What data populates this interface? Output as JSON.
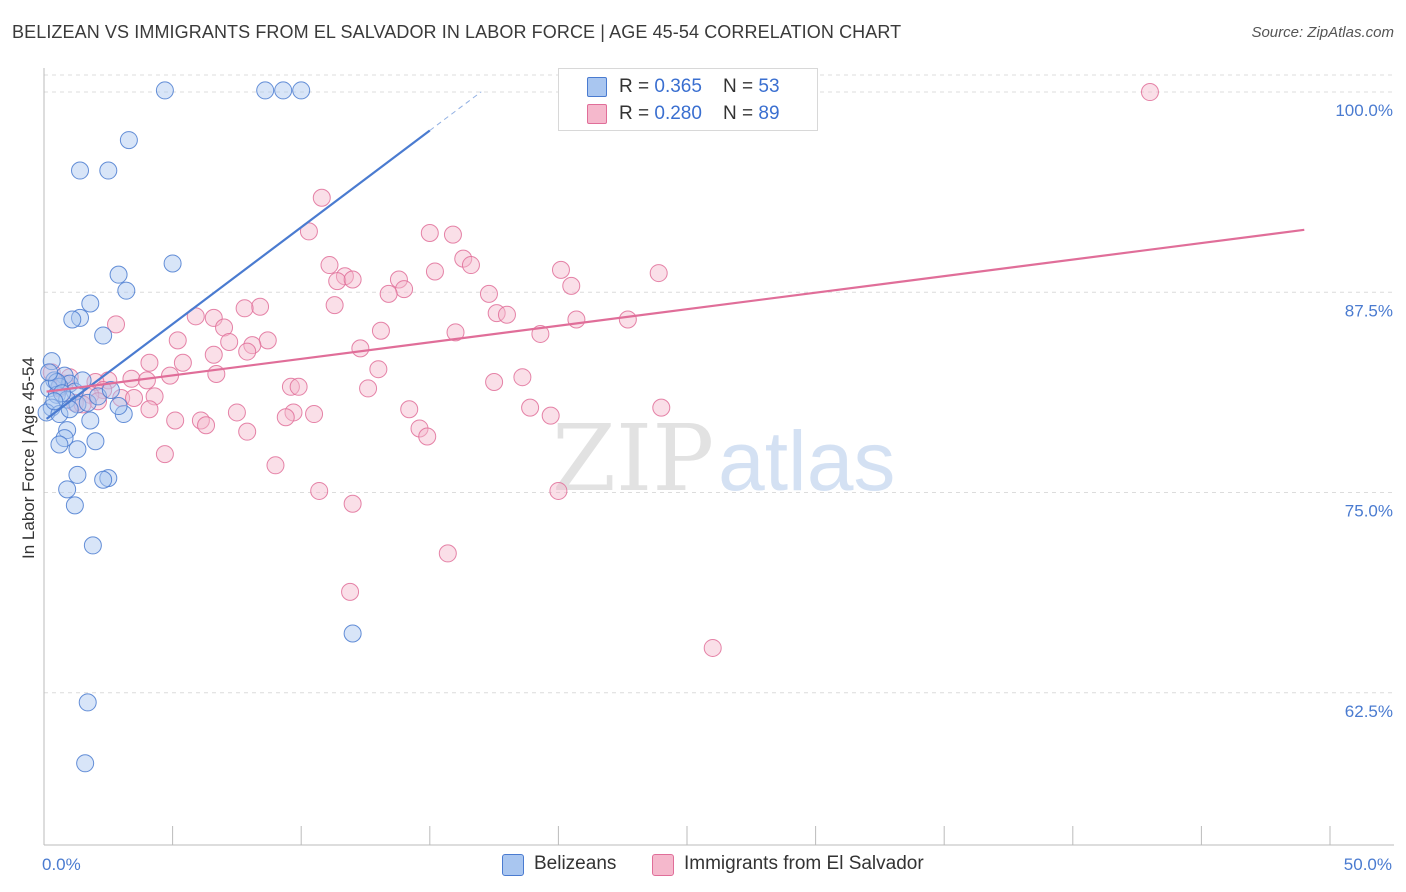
{
  "title": "BELIZEAN VS IMMIGRANTS FROM EL SALVADOR IN LABOR FORCE | AGE 45-54 CORRELATION CHART",
  "source": "Source: ZipAtlas.com",
  "watermark": {
    "zip": "ZIP",
    "atlas": "atlas"
  },
  "legend": {
    "series1": {
      "r_label": "R = ",
      "r_value": "0.365",
      "n_label": "N = ",
      "n_value": "53"
    },
    "series2": {
      "r_label": "R = ",
      "r_value": "0.280",
      "n_label": "N = ",
      "n_value": "89"
    }
  },
  "colors": {
    "blue": "#4a7bd0",
    "blue_fill": "#a9c6f0",
    "pink": "#e06e99",
    "pink_fill": "#f5b8cc",
    "grid": "#dcdcdc"
  },
  "chart_data": {
    "type": "scatter",
    "title": "BELIZEAN VS IMMIGRANTS FROM EL SALVADOR IN LABOR FORCE | AGE 45-54 CORRELATION CHART",
    "xlabel": "",
    "ylabel": "In Labor Force | Age 45-54",
    "xlim": [
      0,
      50
    ],
    "ylim": [
      53,
      101.5
    ],
    "x_tick_labels": [
      "0.0%",
      "50.0%"
    ],
    "y_ticks": [
      62.5,
      75.0,
      87.5,
      100.0
    ],
    "y_tick_labels": [
      "62.5%",
      "75.0%",
      "87.5%",
      "100.0%"
    ],
    "grid": "horizontal dashed",
    "legend_position": "bottom",
    "series": [
      {
        "name": "Belizeans",
        "color": "#4a7bd0",
        "trend": {
          "x": [
            0.1,
            15.0
          ],
          "y": [
            79.6,
            97.6
          ],
          "dashed_extension_to_x": 17.0
        },
        "points": [
          [
            4.7,
            100.1
          ],
          [
            8.6,
            100.1
          ],
          [
            9.3,
            100.1
          ],
          [
            10.0,
            100.1
          ],
          [
            3.3,
            97.0
          ],
          [
            1.4,
            95.1
          ],
          [
            2.5,
            95.1
          ],
          [
            5.0,
            89.3
          ],
          [
            2.9,
            88.6
          ],
          [
            3.2,
            87.6
          ],
          [
            1.8,
            86.8
          ],
          [
            1.4,
            85.9
          ],
          [
            1.1,
            85.8
          ],
          [
            2.3,
            84.8
          ],
          [
            0.3,
            83.2
          ],
          [
            0.8,
            82.3
          ],
          [
            0.4,
            82.0
          ],
          [
            1.0,
            81.8
          ],
          [
            0.6,
            81.6
          ],
          [
            0.2,
            81.5
          ],
          [
            1.2,
            81.3
          ],
          [
            0.5,
            81.1
          ],
          [
            0.9,
            80.8
          ],
          [
            1.3,
            80.5
          ],
          [
            0.3,
            80.3
          ],
          [
            1.7,
            80.6
          ],
          [
            0.1,
            80.0
          ],
          [
            0.6,
            79.9
          ],
          [
            3.1,
            79.9
          ],
          [
            1.8,
            79.5
          ],
          [
            0.9,
            78.9
          ],
          [
            0.8,
            78.4
          ],
          [
            2.0,
            78.2
          ],
          [
            0.6,
            78.0
          ],
          [
            1.3,
            77.7
          ],
          [
            1.3,
            76.1
          ],
          [
            2.5,
            75.9
          ],
          [
            2.3,
            75.8
          ],
          [
            0.9,
            75.2
          ],
          [
            1.2,
            74.2
          ],
          [
            1.9,
            71.7
          ],
          [
            12.0,
            66.2
          ],
          [
            1.7,
            61.9
          ],
          [
            1.6,
            58.1
          ],
          [
            0.5,
            81.9
          ],
          [
            0.7,
            81.2
          ],
          [
            2.1,
            81.0
          ],
          [
            0.4,
            80.7
          ],
          [
            1.5,
            82.0
          ],
          [
            2.6,
            81.4
          ],
          [
            0.2,
            82.5
          ],
          [
            1.0,
            80.2
          ],
          [
            2.9,
            80.4
          ]
        ]
      },
      {
        "name": "Immigrants from El Salvador",
        "color": "#e06e99",
        "trend": {
          "x": [
            0.1,
            49.0
          ],
          "y": [
            81.3,
            91.4
          ]
        },
        "points": [
          [
            43.0,
            100.0
          ],
          [
            10.8,
            93.4
          ],
          [
            10.3,
            91.3
          ],
          [
            15.0,
            91.2
          ],
          [
            15.9,
            91.1
          ],
          [
            16.3,
            89.6
          ],
          [
            11.1,
            89.2
          ],
          [
            20.1,
            88.9
          ],
          [
            15.2,
            88.8
          ],
          [
            16.6,
            89.2
          ],
          [
            11.7,
            88.5
          ],
          [
            13.8,
            88.3
          ],
          [
            11.4,
            88.2
          ],
          [
            20.5,
            87.9
          ],
          [
            14.0,
            87.7
          ],
          [
            13.4,
            87.4
          ],
          [
            17.3,
            87.4
          ],
          [
            11.3,
            86.7
          ],
          [
            8.4,
            86.6
          ],
          [
            7.8,
            86.5
          ],
          [
            17.6,
            86.2
          ],
          [
            5.9,
            86.0
          ],
          [
            6.6,
            85.9
          ],
          [
            20.7,
            85.8
          ],
          [
            2.8,
            85.5
          ],
          [
            7.0,
            85.3
          ],
          [
            13.1,
            85.1
          ],
          [
            16.0,
            85.0
          ],
          [
            19.3,
            84.9
          ],
          [
            5.2,
            84.5
          ],
          [
            8.7,
            84.5
          ],
          [
            7.2,
            84.4
          ],
          [
            8.1,
            84.2
          ],
          [
            12.3,
            84.0
          ],
          [
            7.9,
            83.8
          ],
          [
            6.6,
            83.6
          ],
          [
            4.1,
            83.1
          ],
          [
            5.4,
            83.1
          ],
          [
            13.0,
            82.7
          ],
          [
            6.7,
            82.4
          ],
          [
            4.9,
            82.3
          ],
          [
            18.6,
            82.2
          ],
          [
            3.4,
            82.1
          ],
          [
            4.0,
            82.0
          ],
          [
            2.5,
            82.0
          ],
          [
            17.5,
            81.9
          ],
          [
            2.0,
            81.9
          ],
          [
            9.6,
            81.6
          ],
          [
            9.9,
            81.6
          ],
          [
            12.6,
            81.5
          ],
          [
            2.3,
            81.4
          ],
          [
            0.6,
            81.5
          ],
          [
            4.3,
            81.0
          ],
          [
            1.8,
            81.1
          ],
          [
            3.0,
            80.9
          ],
          [
            3.5,
            80.9
          ],
          [
            2.1,
            80.7
          ],
          [
            1.2,
            80.6
          ],
          [
            14.2,
            80.2
          ],
          [
            24.0,
            80.3
          ],
          [
            18.9,
            80.3
          ],
          [
            4.1,
            80.2
          ],
          [
            1.5,
            80.5
          ],
          [
            7.5,
            80.0
          ],
          [
            9.7,
            80.0
          ],
          [
            10.5,
            79.9
          ],
          [
            19.7,
            79.8
          ],
          [
            9.4,
            79.7
          ],
          [
            5.1,
            79.5
          ],
          [
            6.1,
            79.5
          ],
          [
            6.3,
            79.2
          ],
          [
            14.6,
            79.0
          ],
          [
            7.9,
            78.8
          ],
          [
            14.9,
            78.5
          ],
          [
            4.7,
            77.4
          ],
          [
            9.0,
            76.7
          ],
          [
            10.7,
            75.1
          ],
          [
            20.0,
            75.1
          ],
          [
            12.0,
            74.3
          ],
          [
            15.7,
            71.2
          ],
          [
            11.9,
            68.8
          ],
          [
            26.0,
            65.3
          ],
          [
            0.3,
            82.5
          ],
          [
            0.8,
            81.8
          ],
          [
            1.0,
            82.2
          ],
          [
            12.0,
            88.3
          ],
          [
            22.7,
            85.8
          ],
          [
            23.9,
            88.7
          ],
          [
            18.0,
            86.1
          ]
        ]
      }
    ]
  },
  "bottom_legend": {
    "series1": "Belizeans",
    "series2": "Immigrants from El Salvador"
  }
}
